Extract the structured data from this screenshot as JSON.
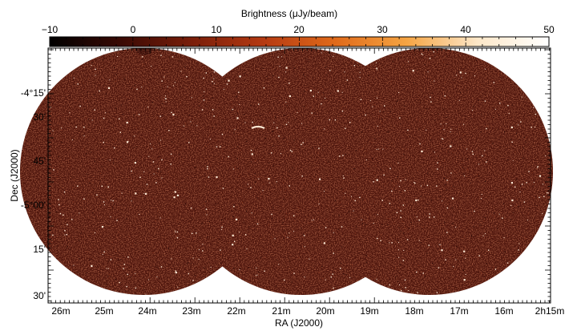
{
  "chart_data": {
    "type": "heatmap",
    "title": "",
    "colorbar": {
      "label": "Brightness (μJy/beam)",
      "range": [
        -10,
        50
      ],
      "tick_labels": [
        "−10",
        "0",
        "10",
        "20",
        "30",
        "40",
        "50"
      ],
      "colormap": [
        "#000000",
        "#3a0a04",
        "#7a1e0a",
        "#b53a12",
        "#e06a1a",
        "#f5a443",
        "#fde7c8",
        "#ffffff"
      ],
      "placement": "top"
    },
    "xlabel": "RA (J2000)",
    "ylabel": "Dec (J2000)",
    "x_tick_labels": [
      "26m",
      "25m",
      "24m",
      "23m",
      "22m",
      "21m",
      "20m",
      "19m",
      "18m",
      "17m",
      "16m",
      "2h15m"
    ],
    "y_tick_labels": [
      "-4°15'",
      "30'",
      "45'",
      "-5°00'",
      "15'",
      "30'"
    ],
    "pointings": 3,
    "colors": {
      "background_field": "#4a120a",
      "noise_dark": "#1e0402",
      "noise_mid": "#7a2814",
      "source_bright": "#fbe6d2"
    }
  }
}
